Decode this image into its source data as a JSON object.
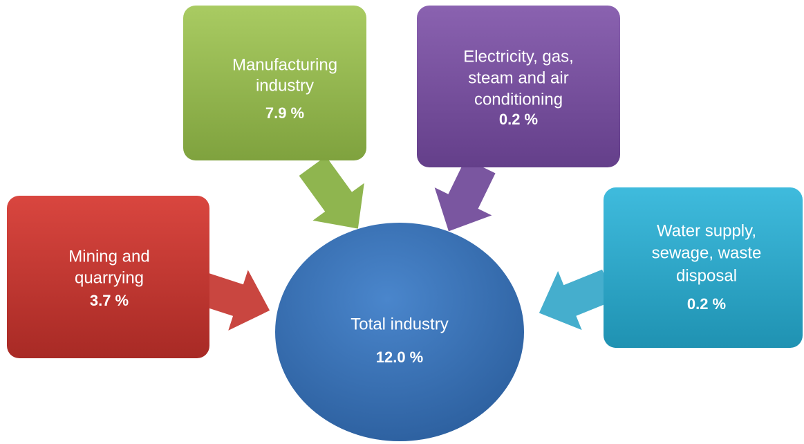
{
  "nodes": [
    {
      "lines": [
        "Manufacturing",
        "industry"
      ],
      "value": "7.9 %"
    },
    {
      "lines": [
        "Electricity, gas,",
        "steam and air",
        "conditioning"
      ],
      "value": "0.2 %"
    },
    {
      "lines": [
        "Mining and",
        "quarrying"
      ],
      "value": "3.7 %"
    },
    {
      "lines": [
        "Water supply,",
        "sewage, waste",
        "disposal"
      ],
      "value": "0.2 %"
    }
  ],
  "center": {
    "lines": [
      "Total industry"
    ],
    "value": "12.0 %"
  }
}
